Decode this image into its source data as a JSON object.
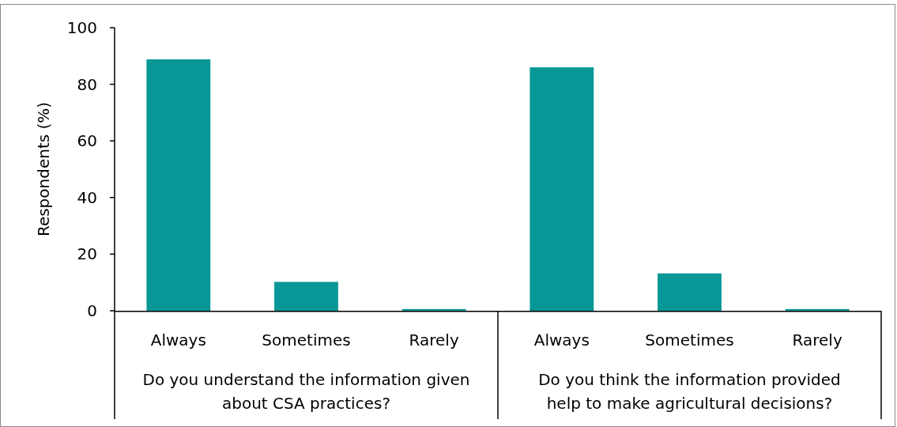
{
  "chart_data": {
    "type": "bar",
    "ylabel": "Respondents (%)",
    "categories": [
      "Always",
      "Sometimes",
      "Rarely",
      "Always",
      "Sometimes",
      "Rarely"
    ],
    "values": [
      88.8,
      10.2,
      0.6,
      86.0,
      13.2,
      0.6
    ],
    "color": "#089796",
    "ylim": [
      0,
      100
    ],
    "yticks": [
      0,
      20,
      40,
      60,
      80,
      100
    ],
    "grid": false,
    "annotations": [
      "Do you understand the information given about CSA practices?",
      "Do you think the information provided help to make agricultural decisions?"
    ]
  }
}
